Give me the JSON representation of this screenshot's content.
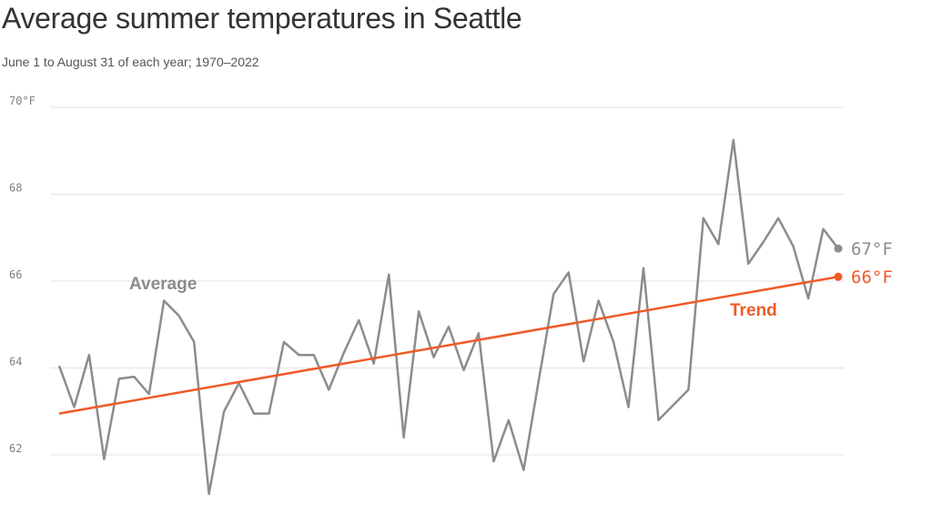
{
  "title": "Average summer temperatures in Seattle",
  "subtitle": "June 1 to August 31 of each year; 1970–2022",
  "colors": {
    "average": "#8c8c8c",
    "trend": "#f05a28",
    "grid": "#e3e3e3"
  },
  "chart_data": {
    "type": "line",
    "title": "Average summer temperatures in Seattle",
    "subtitle": "June 1 to August 31 of each year; 1970–2022",
    "ylim": [
      61,
      70
    ],
    "y_ticks": [
      {
        "value": 62,
        "label": "62"
      },
      {
        "value": 64,
        "label": "64"
      },
      {
        "value": 66,
        "label": "66"
      },
      {
        "value": 68,
        "label": "68"
      },
      {
        "value": 70,
        "label": "70°F"
      }
    ],
    "grid": true,
    "x_range": [
      1970,
      2022
    ],
    "series": [
      {
        "name": "Average",
        "x": [
          1970,
          1971,
          1972,
          1973,
          1974,
          1975,
          1976,
          1977,
          1978,
          1979,
          1980,
          1981,
          1982,
          1983,
          1984,
          1985,
          1986,
          1987,
          1988,
          1989,
          1990,
          1991,
          1992,
          1993,
          1994,
          1995,
          1996,
          1997,
          1998,
          1999,
          2000,
          2001,
          2002,
          2003,
          2004,
          2005,
          2006,
          2007,
          2008,
          2009,
          2010,
          2011,
          2012,
          2013,
          2014,
          2015,
          2016,
          2017,
          2018,
          2019,
          2020,
          2021,
          2022
        ],
        "values": [
          64.05,
          63.1,
          64.3,
          61.9,
          63.75,
          63.8,
          63.4,
          65.55,
          65.2,
          64.6,
          61.1,
          63.0,
          63.65,
          62.95,
          62.95,
          64.6,
          64.3,
          64.3,
          63.5,
          64.35,
          65.1,
          64.1,
          66.15,
          62.4,
          65.3,
          64.25,
          64.95,
          63.95,
          64.8,
          61.85,
          62.8,
          61.65,
          63.7,
          65.7,
          66.2,
          64.15,
          65.55,
          64.6,
          63.1,
          66.3,
          62.8,
          63.15,
          63.5,
          67.45,
          66.85,
          69.25,
          66.4,
          66.9,
          67.45,
          66.8,
          65.6,
          67.2,
          66.75
        ],
        "end_label": "67°F"
      },
      {
        "name": "Trend",
        "x": [
          1970,
          2022
        ],
        "values": [
          62.95,
          66.1
        ],
        "end_label": "66°F"
      }
    ]
  }
}
